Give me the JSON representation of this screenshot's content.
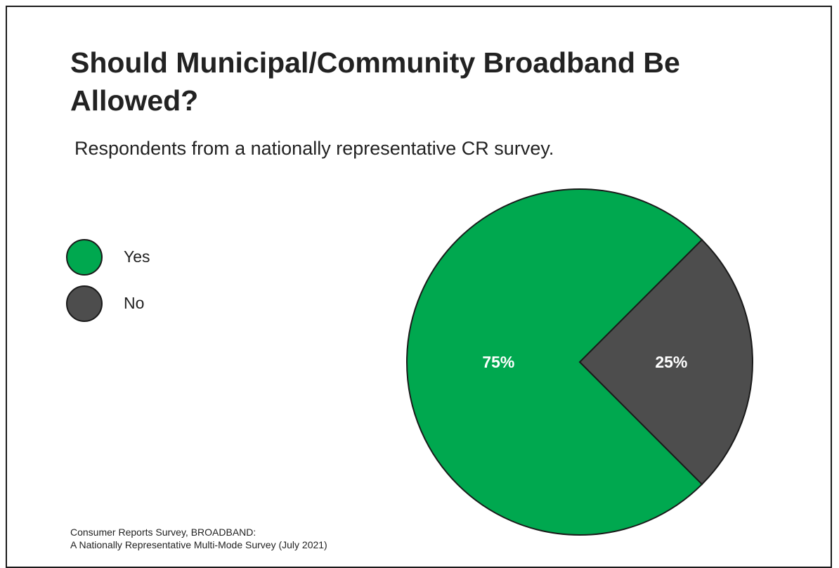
{
  "chart_data": {
    "type": "pie",
    "title": "Should Municipal/Community Broadband Be Allowed?",
    "subtitle": "Respondents from a nationally representative CR survey.",
    "categories": [
      "Yes",
      "No"
    ],
    "values": [
      75,
      25
    ],
    "data_labels": [
      "75%",
      "25%"
    ],
    "colors": [
      "#00a84f",
      "#4d4d4d"
    ],
    "legend_placement": "left",
    "source": [
      "Consumer Reports Survey, BROADBAND:",
      "A Nationally Representative Multi-Mode Survey (July 2021)"
    ]
  }
}
